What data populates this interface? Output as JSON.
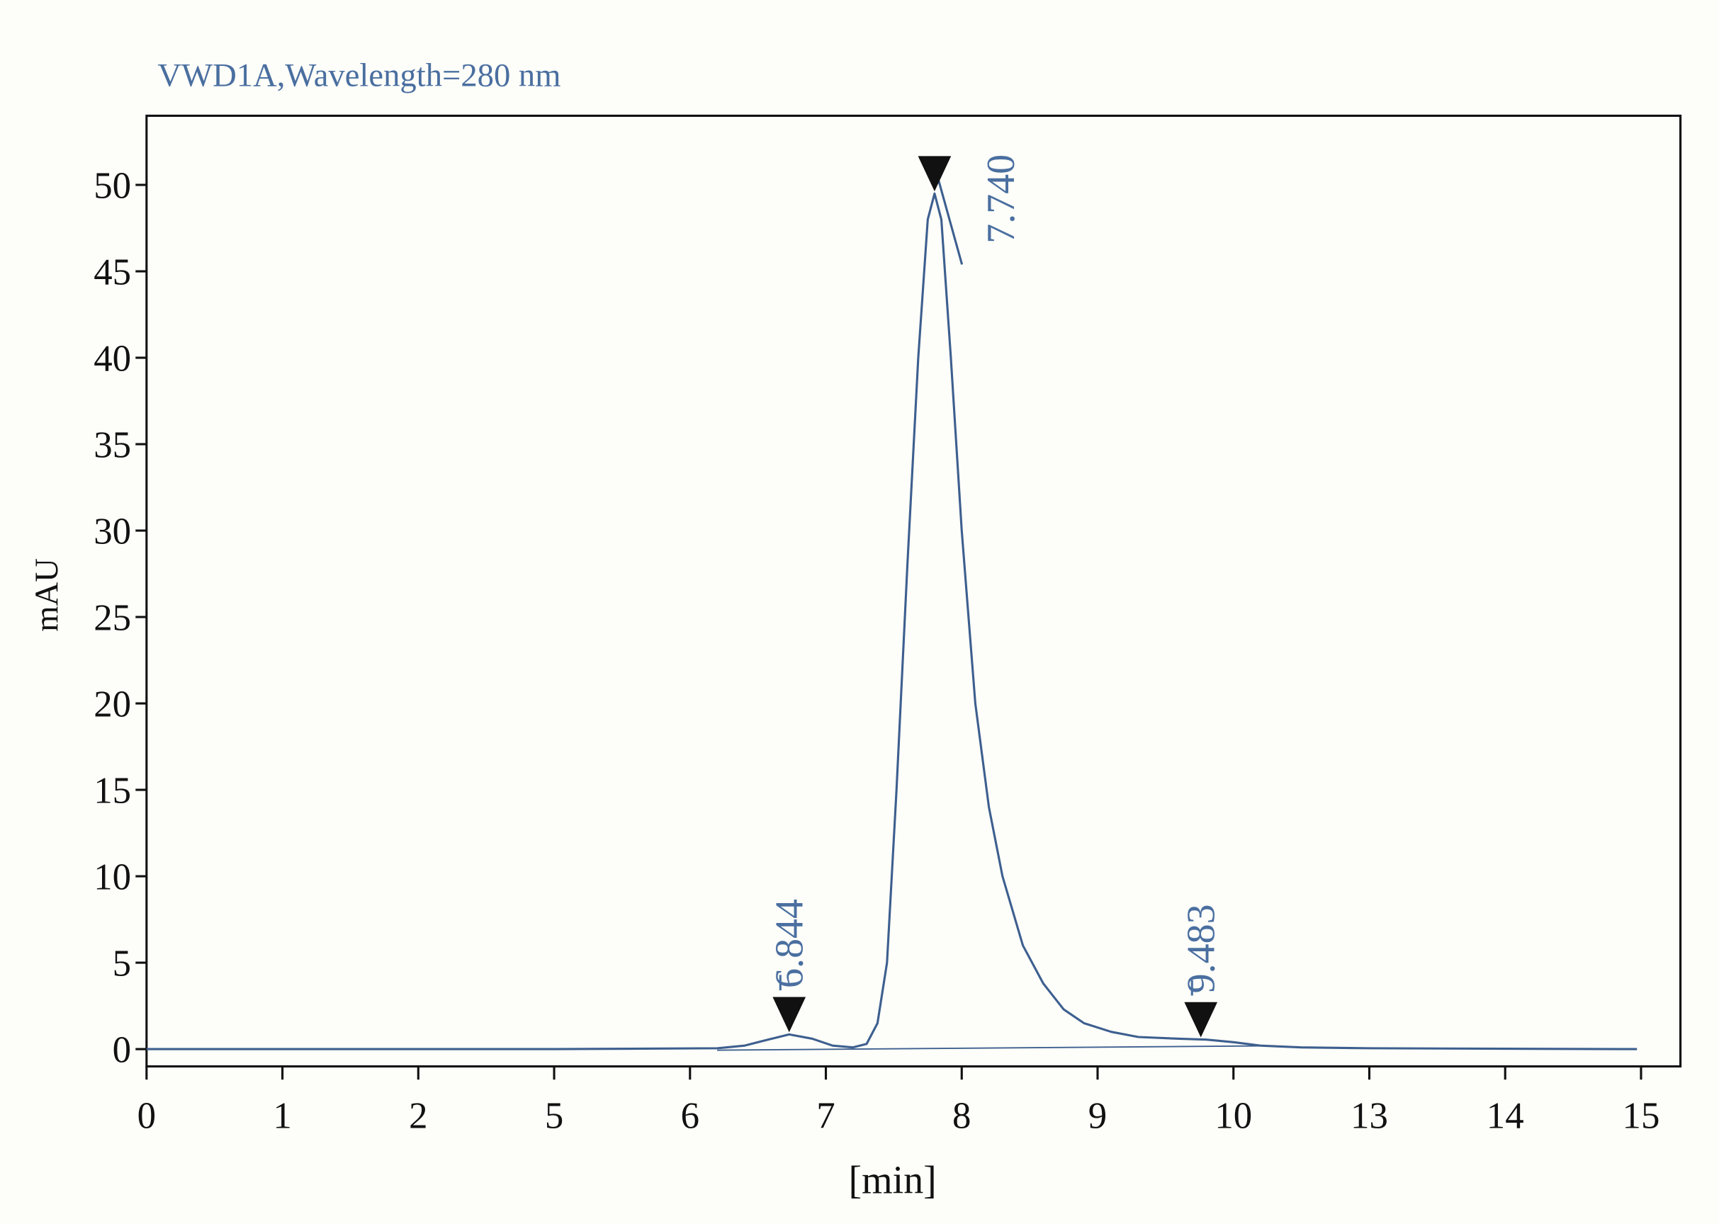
{
  "chart_data": {
    "type": "line",
    "title": "VWD1A,Wavelength=280 nm",
    "x_label": "[min]",
    "y_label": "mAU",
    "x": [
      0,
      3,
      4.2,
      4.4,
      4.55,
      4.73,
      4.9,
      5.05,
      5.2,
      5.3,
      5.38,
      5.45,
      5.52,
      5.6,
      5.68,
      5.75,
      5.8,
      5.85,
      5.92,
      6.0,
      6.1,
      6.2,
      6.3,
      6.45,
      6.6,
      6.75,
      6.9,
      7.1,
      7.3,
      7.6,
      7.8,
      8.0,
      8.2,
      8.5,
      9,
      10,
      10.97
    ],
    "series": [
      {
        "color": "#3d5f8f",
        "values": [
          0,
          0,
          0.05,
          0.2,
          0.5,
          0.85,
          0.6,
          0.2,
          0.1,
          0.3,
          1.5,
          5,
          15,
          28,
          40,
          48,
          49.5,
          48,
          40,
          30,
          20,
          14,
          10,
          6,
          3.8,
          2.3,
          1.5,
          1.0,
          0.7,
          0.6,
          0.55,
          0.4,
          0.2,
          0.1,
          0.05,
          0.02,
          0
        ]
      }
    ],
    "peaks": [
      {
        "x": 4.73,
        "y": 0.85,
        "label": "6.844"
      },
      {
        "x": 5.8,
        "y": 49.5,
        "label": "7.740"
      },
      {
        "x": 7.76,
        "y": 0.55,
        "label": "9.483"
      }
    ],
    "xlim": [
      0,
      11.29
    ],
    "ylim": [
      -1,
      54
    ],
    "xticks": [
      0,
      1,
      2,
      {
        "value": 3,
        "label": "5"
      },
      {
        "value": 4,
        "label": "6"
      },
      {
        "value": 5,
        "label": "7"
      },
      {
        "value": 6,
        "label": "8"
      },
      {
        "value": 7,
        "label": "9"
      },
      {
        "value": 8,
        "label": "10"
      },
      {
        "value": 9,
        "label": "13"
      },
      {
        "value": 10,
        "label": "14"
      },
      {
        "value": 11,
        "label": "15"
      }
    ],
    "yticks": [
      0,
      5,
      10,
      15,
      20,
      25,
      30,
      35,
      40,
      45,
      50
    ]
  }
}
